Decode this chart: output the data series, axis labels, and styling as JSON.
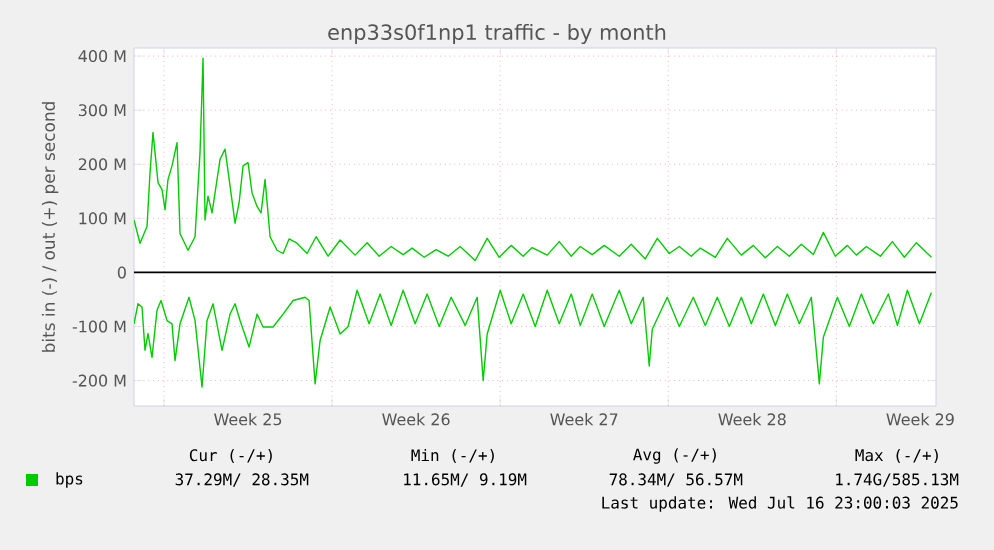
{
  "chart_data": {
    "type": "line",
    "title": "enp33s0f1np1 traffic - by month",
    "ylabel": "bits in (-) / out (+) per second",
    "xlim": [
      "2025-06-13T18:00",
      "2025-07-17T03:36"
    ],
    "ylim": [
      -247,
      415
    ],
    "xticks": [
      {
        "value": "2025-06-15T00:00",
        "label": null
      },
      {
        "value": "2025-06-18T12:00",
        "label": "Week 25"
      },
      {
        "value": "2025-06-22T00:00",
        "label": null
      },
      {
        "value": "2025-06-25T12:00",
        "label": "Week 26"
      },
      {
        "value": "2025-06-29T00:00",
        "label": null
      },
      {
        "value": "2025-07-02T12:00",
        "label": "Week 27"
      },
      {
        "value": "2025-07-06T00:00",
        "label": null
      },
      {
        "value": "2025-07-09T12:00",
        "label": "Week 28"
      },
      {
        "value": "2025-07-13T00:00",
        "label": null
      },
      {
        "value": "2025-07-16T12:00",
        "label": "Week 29"
      }
    ],
    "yticks": [
      {
        "value": -200,
        "label": "-200 M"
      },
      {
        "value": -100,
        "label": "-100 M"
      },
      0,
      {
        "value": 100,
        "label": "100 M"
      },
      {
        "value": 200,
        "label": "200 M"
      },
      {
        "value": 300,
        "label": "300 M"
      },
      {
        "value": 400,
        "label": "400 M"
      }
    ],
    "grid": true,
    "legend": "bottom",
    "ref_lines": [
      {
        "axis": "y",
        "value": 0,
        "color": "#000000"
      }
    ],
    "series": [
      {
        "name": "bps",
        "color": "#00cc00",
        "x": [
          "2025-06-13T18:00",
          "2025-06-14T00:00",
          "2025-06-14T07:00",
          "2025-06-14T10:00",
          "2025-06-14T13:00",
          "2025-06-14T18:00",
          "2025-06-14T22:00",
          "2025-06-15T01:00",
          "2025-06-15T04:00",
          "2025-06-15T08:00",
          "2025-06-15T13:00",
          "2025-06-15T16:00",
          "2025-06-16T00:00",
          "2025-06-16T07:00",
          "2025-06-16T12:00",
          "2025-06-16T15:00",
          "2025-06-16T17:00",
          "2025-06-16T20:00",
          "2025-06-17T00:00",
          "2025-06-17T08:00",
          "2025-06-17T13:00",
          "2025-06-17T18:00",
          "2025-06-17T23:00",
          "2025-06-18T03:00",
          "2025-06-18T07:00",
          "2025-06-18T12:00",
          "2025-06-18T16:00",
          "2025-06-18T21:00",
          "2025-06-19T01:00",
          "2025-06-19T05:00",
          "2025-06-19T10:00",
          "2025-06-19T17:00",
          "2025-06-19T23:00",
          "2025-06-20T05:00",
          "2025-06-20T13:00",
          "2025-06-20T23:00",
          "2025-06-21T08:00",
          "2025-06-21T20:00",
          "2025-06-22T08:00",
          "2025-06-22T23:00",
          "2025-06-23T11:00",
          "2025-06-23T23:00",
          "2025-06-24T11:00",
          "2025-06-24T23:00",
          "2025-06-25T08:00",
          "2025-06-25T20:00",
          "2025-06-26T08:00",
          "2025-06-26T20:00",
          "2025-06-27T08:00",
          "2025-06-27T23:00",
          "2025-06-28T11:00",
          "2025-06-28T23:00",
          "2025-06-29T11:00",
          "2025-06-29T23:00",
          "2025-06-30T08:00",
          "2025-06-30T23:00",
          "2025-07-01T11:00",
          "2025-07-01T23:00",
          "2025-07-02T08:00",
          "2025-07-02T20:00",
          "2025-07-03T08:00",
          "2025-07-03T23:00",
          "2025-07-04T11:00",
          "2025-07-05T01:00",
          "2025-07-05T13:00",
          "2025-07-06T01:00",
          "2025-07-06T11:00",
          "2025-07-06T23:00",
          "2025-07-07T08:00",
          "2025-07-07T23:00",
          "2025-07-08T11:00",
          "2025-07-09T01:00",
          "2025-07-09T13:00",
          "2025-07-10T01:00",
          "2025-07-10T13:00",
          "2025-07-11T01:00",
          "2025-07-11T13:00",
          "2025-07-12T01:00",
          "2025-07-12T11:00",
          "2025-07-12T23:00",
          "2025-07-13T11:00",
          "2025-07-13T20:00",
          "2025-07-14T06:00",
          "2025-07-14T20:00",
          "2025-07-15T08:00",
          "2025-07-15T20:00",
          "2025-07-16T08:00",
          "2025-07-16T23:00"
        ],
        "values": [
          97,
          54,
          85,
          184,
          259,
          166,
          153,
          116,
          172,
          197,
          240,
          72,
          41,
          66,
          222,
          396,
          97,
          141,
          110,
          209,
          228,
          160,
          91,
          128,
          197,
          203,
          147,
          122,
          110,
          172,
          66,
          41,
          35,
          62,
          54,
          35,
          66,
          30,
          60,
          32,
          55,
          30,
          48,
          33,
          45,
          28,
          42,
          30,
          48,
          22,
          63,
          28,
          50,
          30,
          46,
          32,
          57,
          30,
          48,
          33,
          50,
          30,
          52,
          25,
          63,
          35,
          48,
          30,
          45,
          28,
          63,
          32,
          50,
          27,
          48,
          30,
          52,
          33,
          74,
          30,
          50,
          32,
          48,
          30,
          57,
          28,
          55,
          28
        ]
      },
      {
        "color": "#00cc00",
        "x": [
          "2025-06-13T18:00",
          "2025-06-13T22:00",
          "2025-06-14T02:00",
          "2025-06-14T05:00",
          "2025-06-14T08:00",
          "2025-06-14T12:00",
          "2025-06-14T17:00",
          "2025-06-14T21:00",
          "2025-06-15T03:00",
          "2025-06-15T08:00",
          "2025-06-15T11:00",
          "2025-06-15T16:00",
          "2025-06-16T01:00",
          "2025-06-16T07:00",
          "2025-06-16T14:00",
          "2025-06-16T19:00",
          "2025-06-17T01:00",
          "2025-06-17T10:00",
          "2025-06-17T18:00",
          "2025-06-17T23:00",
          "2025-06-18T04:00",
          "2025-06-18T13:00",
          "2025-06-18T21:00",
          "2025-06-19T03:00",
          "2025-06-19T13:00",
          "2025-06-19T23:00",
          "2025-06-20T09:00",
          "2025-06-20T21:00",
          "2025-06-21T01:00",
          "2025-06-21T07:00",
          "2025-06-21T12:00",
          "2025-06-21T22:00",
          "2025-06-22T08:00",
          "2025-06-22T16:00",
          "2025-06-23T01:00",
          "2025-06-23T13:00",
          "2025-06-24T00:00",
          "2025-06-24T11:00",
          "2025-06-24T23:00",
          "2025-06-25T11:00",
          "2025-06-25T23:00",
          "2025-06-26T11:00",
          "2025-06-26T23:00",
          "2025-06-27T13:00",
          "2025-06-28T01:00",
          "2025-06-28T07:00",
          "2025-06-28T11:00",
          "2025-06-29T00:00",
          "2025-06-29T11:00",
          "2025-06-29T23:00",
          "2025-06-30T11:00",
          "2025-06-30T23:00",
          "2025-07-01T11:00",
          "2025-07-01T23:00",
          "2025-07-02T08:00",
          "2025-07-02T20:00",
          "2025-07-03T08:00",
          "2025-07-03T23:00",
          "2025-07-04T11:00",
          "2025-07-04T23:00",
          "2025-07-05T05:00",
          "2025-07-05T08:00",
          "2025-07-05T23:00",
          "2025-07-06T11:00",
          "2025-07-07T01:00",
          "2025-07-07T13:00",
          "2025-07-08T01:00",
          "2025-07-08T13:00",
          "2025-07-09T01:00",
          "2025-07-09T11:00",
          "2025-07-09T23:00",
          "2025-07-10T11:00",
          "2025-07-10T23:00",
          "2025-07-11T11:00",
          "2025-07-11T23:00",
          "2025-07-12T07:00",
          "2025-07-12T11:00",
          "2025-07-13T01:00",
          "2025-07-13T13:00",
          "2025-07-14T01:00",
          "2025-07-14T13:00",
          "2025-07-15T04:00",
          "2025-07-15T13:00",
          "2025-07-15T23:00",
          "2025-07-16T11:00",
          "2025-07-16T23:00"
        ],
        "values": [
          -95,
          -58,
          -64,
          -144,
          -113,
          -157,
          -70,
          -52,
          -89,
          -95,
          -163,
          -95,
          -46,
          -89,
          -212,
          -89,
          -58,
          -144,
          -77,
          -58,
          -89,
          -138,
          -77,
          -101,
          -101,
          -77,
          -52,
          -46,
          -52,
          -206,
          -126,
          -64,
          -114,
          -100,
          -33,
          -95,
          -40,
          -98,
          -33,
          -95,
          -40,
          -100,
          -46,
          -98,
          -46,
          -200,
          -114,
          -33,
          -95,
          -40,
          -100,
          -33,
          -95,
          -40,
          -98,
          -40,
          -100,
          -33,
          -95,
          -46,
          -173,
          -105,
          -46,
          -100,
          -46,
          -98,
          -46,
          -100,
          -46,
          -95,
          -40,
          -98,
          -40,
          -95,
          -46,
          -206,
          -120,
          -46,
          -100,
          -40,
          -95,
          -40,
          -98,
          -33,
          -95,
          -37
        ]
      }
    ],
    "annotations": [
      "Cur (-/+)",
      "Min (-/+)",
      "Avg (-/+)",
      "Max (-/+)",
      "37.29M/ 28.35M",
      "11.65M/ 9.19M",
      "78.34M/ 56.57M",
      "1.74G/585.13M",
      "Last update: Wed Jul 16 23:00:03 2025"
    ]
  }
}
